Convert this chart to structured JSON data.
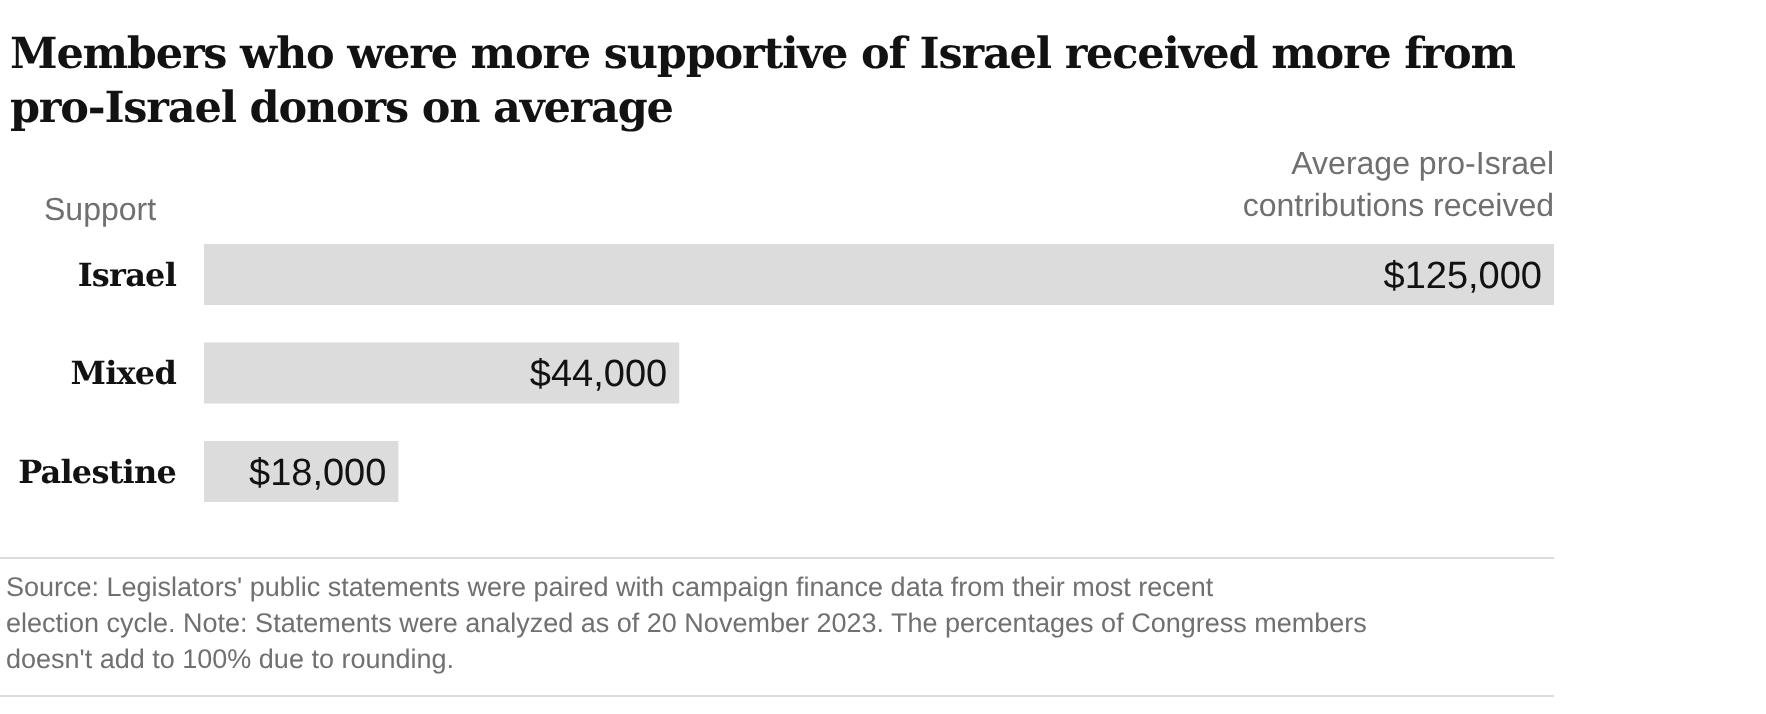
{
  "chart_data": {
    "type": "bar",
    "orientation": "horizontal",
    "title": "Members who were more supportive of Israel received more from pro-Israel donors on average",
    "ylabel": "Support",
    "xlabel": "Average pro-Israel contributions received",
    "categories": [
      "Israel",
      "Mixed",
      "Palestine"
    ],
    "values": [
      125000,
      44000,
      18000
    ],
    "value_labels": [
      "$125,000",
      "$44,000",
      "$18,000"
    ],
    "color": "#dcdcdc",
    "xlim": [
      0,
      125000
    ],
    "annotations": [
      "Source: Legislators' public statements were paired with campaign finance data from their most recent election cycle. Note: Statements were analyzed as of 20 November 2023. The percentages of Congress members doesn't add to 100% due to rounding."
    ]
  }
}
